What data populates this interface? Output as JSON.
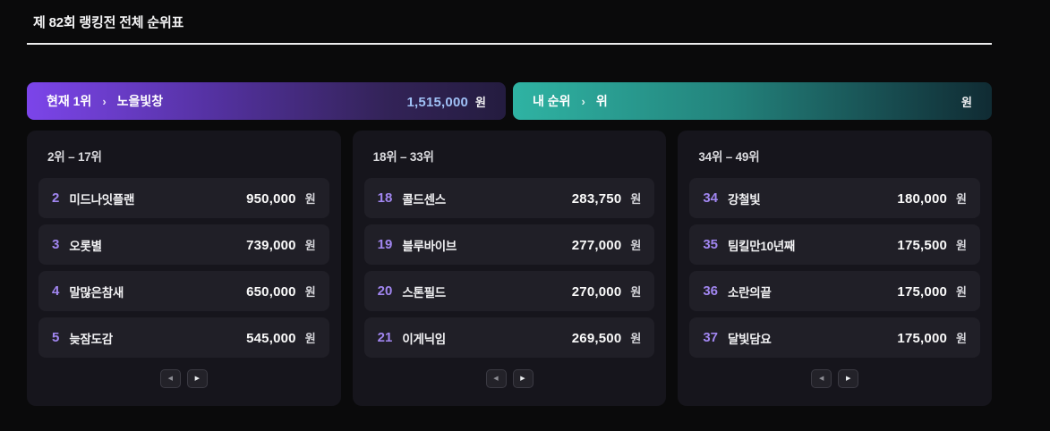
{
  "page": {
    "title": "제 82회 랭킹전 전체 순위표"
  },
  "banners": {
    "current_top": {
      "label": "현재 1위",
      "chevron": "›",
      "name": "노을빛창",
      "amount": "1,515,000",
      "currency": "원"
    },
    "my_rank": {
      "label": "내 순위",
      "chevron": "›",
      "name": "위",
      "amount": "",
      "currency": "원"
    }
  },
  "icons": {
    "prev_arrow": "◀",
    "next_arrow": "▶"
  },
  "colors": {
    "page_background": "#0a0a0b",
    "card_background": "#16151c",
    "row_background": "#201f27",
    "rank_accent": "#a186f0",
    "banner_purple_start": "#7c45ea",
    "banner_purple_end": "#241c3f",
    "banner_teal_start": "#2fb3a3",
    "banner_teal_end": "#102b33",
    "banner_amount_blue": "#9fc0f5"
  },
  "columns": [
    {
      "range_label": "2위 – 17위",
      "rows": [
        {
          "rank": "2",
          "name": "미드나잇플랜",
          "amount": "950,000",
          "currency": "원"
        },
        {
          "rank": "3",
          "name": "오롯별",
          "amount": "739,000",
          "currency": "원"
        },
        {
          "rank": "4",
          "name": "말많은참새",
          "amount": "650,000",
          "currency": "원"
        },
        {
          "rank": "5",
          "name": "늦잠도감",
          "amount": "545,000",
          "currency": "원"
        }
      ]
    },
    {
      "range_label": "18위 – 33위",
      "rows": [
        {
          "rank": "18",
          "name": "콜드센스",
          "amount": "283,750",
          "currency": "원"
        },
        {
          "rank": "19",
          "name": "블루바이브",
          "amount": "277,000",
          "currency": "원"
        },
        {
          "rank": "20",
          "name": "스톤필드",
          "amount": "270,000",
          "currency": "원"
        },
        {
          "rank": "21",
          "name": "이게닉임",
          "amount": "269,500",
          "currency": "원"
        }
      ]
    },
    {
      "range_label": "34위 – 49위",
      "rows": [
        {
          "rank": "34",
          "name": "강철빛",
          "amount": "180,000",
          "currency": "원"
        },
        {
          "rank": "35",
          "name": "팀킬만10년째",
          "amount": "175,500",
          "currency": "원"
        },
        {
          "rank": "36",
          "name": "소란의끝",
          "amount": "175,000",
          "currency": "원"
        },
        {
          "rank": "37",
          "name": "달빛담요",
          "amount": "175,000",
          "currency": "원"
        }
      ]
    }
  ]
}
